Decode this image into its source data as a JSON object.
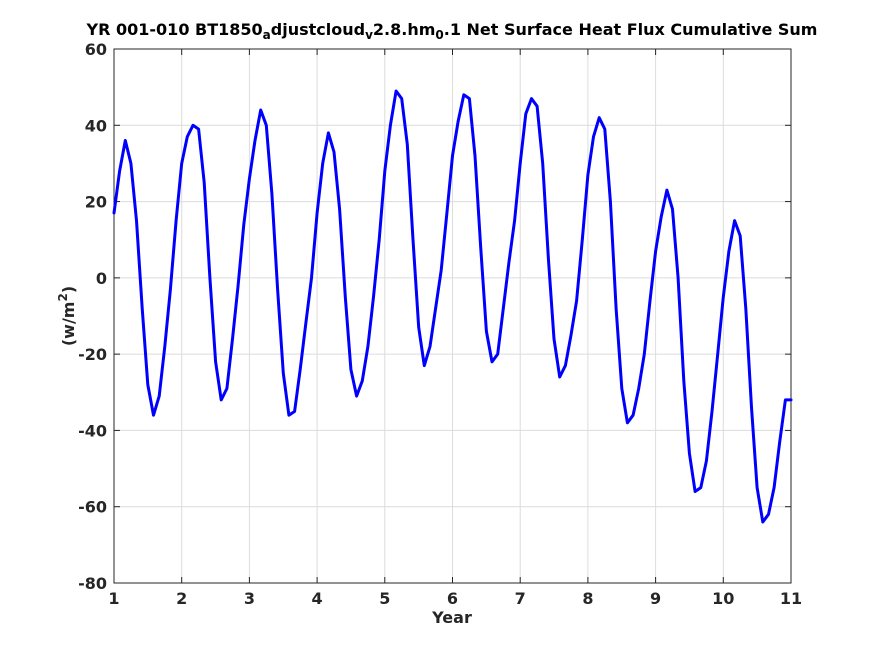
{
  "chart_data": {
    "type": "line",
    "title": {
      "p1": "YR 001-010 BT1850",
      "s1": "a",
      "p2": "djustcloud",
      "s2": "v",
      "p3": "2.8.hm",
      "s3": "0",
      "p4": ".1 Net Surface Heat Flux  Cumulative Sum"
    },
    "xlabel": "Year",
    "ylabel": {
      "base": "(w/m",
      "sup": "2",
      "close": ")"
    },
    "xlim": [
      1,
      11
    ],
    "ylim": [
      -80,
      60
    ],
    "xticks": [
      1,
      2,
      3,
      4,
      5,
      6,
      7,
      8,
      9,
      10,
      11
    ],
    "yticks": [
      -80,
      -60,
      -40,
      -20,
      0,
      20,
      40,
      60
    ],
    "grid": true,
    "series": [
      {
        "color": "#0000ff",
        "x": [
          1.0,
          1.083,
          1.167,
          1.25,
          1.333,
          1.417,
          1.5,
          1.583,
          1.667,
          1.75,
          1.833,
          1.917,
          2.0,
          2.083,
          2.167,
          2.25,
          2.333,
          2.417,
          2.5,
          2.583,
          2.667,
          2.75,
          2.833,
          2.917,
          3.0,
          3.083,
          3.167,
          3.25,
          3.333,
          3.417,
          3.5,
          3.583,
          3.667,
          3.75,
          3.833,
          3.917,
          4.0,
          4.083,
          4.167,
          4.25,
          4.333,
          4.417,
          4.5,
          4.583,
          4.667,
          4.75,
          4.833,
          4.917,
          5.0,
          5.083,
          5.167,
          5.25,
          5.333,
          5.417,
          5.5,
          5.583,
          5.667,
          5.75,
          5.833,
          5.917,
          6.0,
          6.083,
          6.167,
          6.25,
          6.333,
          6.417,
          6.5,
          6.583,
          6.667,
          6.75,
          6.833,
          6.917,
          7.0,
          7.083,
          7.167,
          7.25,
          7.333,
          7.417,
          7.5,
          7.583,
          7.667,
          7.75,
          7.833,
          7.917,
          8.0,
          8.083,
          8.167,
          8.25,
          8.333,
          8.417,
          8.5,
          8.583,
          8.667,
          8.75,
          8.833,
          8.917,
          9.0,
          9.083,
          9.167,
          9.25,
          9.333,
          9.417,
          9.5,
          9.583,
          9.667,
          9.75,
          9.833,
          9.917,
          10.0,
          10.083,
          10.167,
          10.25,
          10.333,
          10.417,
          10.5,
          10.583,
          10.667,
          10.75,
          10.833,
          10.917,
          11.0
        ],
        "y": [
          17,
          28,
          36,
          30,
          15,
          -8,
          -28,
          -36,
          -31,
          -18,
          -3,
          15,
          30,
          37,
          40,
          39,
          25,
          0,
          -22,
          -32,
          -29,
          -16,
          -2,
          14,
          26,
          36,
          44,
          40,
          22,
          -3,
          -25,
          -36,
          -35,
          -24,
          -12,
          0,
          17,
          30,
          38,
          33,
          18,
          -5,
          -24,
          -31,
          -27,
          -18,
          -5,
          10,
          28,
          40,
          49,
          47,
          35,
          10,
          -13,
          -23,
          -18,
          -8,
          2,
          17,
          32,
          41,
          48,
          47,
          32,
          8,
          -14,
          -22,
          -20,
          -8,
          4,
          15,
          30,
          43,
          47,
          45,
          30,
          5,
          -16,
          -26,
          -23,
          -15,
          -6,
          10,
          27,
          37,
          42,
          39,
          20,
          -8,
          -29,
          -38,
          -36,
          -29,
          -20,
          -6,
          7,
          16,
          23,
          18,
          0,
          -27,
          -46,
          -56,
          -55,
          -48,
          -35,
          -20,
          -5,
          7,
          15,
          11,
          -8,
          -34,
          -55,
          -64,
          -62,
          -55,
          -43,
          -32,
          -32
        ]
      }
    ]
  }
}
